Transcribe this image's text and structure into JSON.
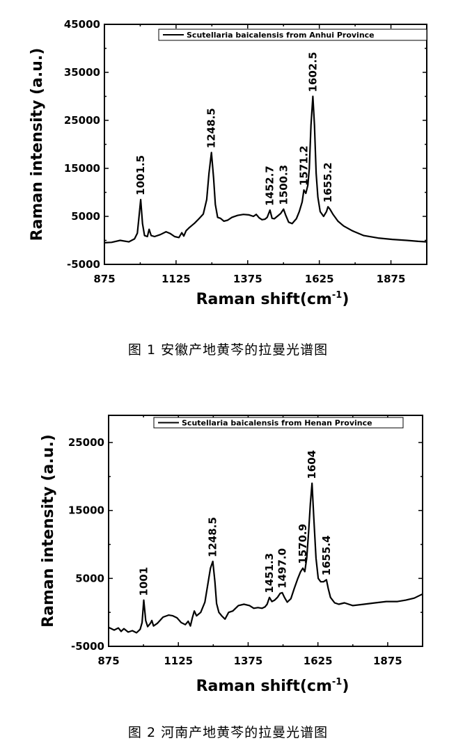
{
  "chart_data": [
    {
      "type": "line",
      "caption": "图 1  安徽产地黄芩的拉曼光谱图",
      "xlabel": "Raman shift(cm",
      "xlabel_sup": "-1",
      "xlabel_close": ")",
      "ylabel": "Raman intensity (a.u.)",
      "xlim": [
        875,
        2000
      ],
      "ylim": [
        -5000,
        45000
      ],
      "xticks": [
        875,
        1125,
        1375,
        1625,
        1875
      ],
      "yticks": [
        -5000,
        5000,
        15000,
        25000,
        35000,
        45000
      ],
      "legend": "top-right",
      "series": [
        {
          "name": "Scutellaria baicalensis from Anhui Province",
          "x": [
            875,
            900,
            930,
            960,
            980,
            990,
            995,
            1001.5,
            1008,
            1015,
            1025,
            1031,
            1038,
            1050,
            1070,
            1090,
            1105,
            1120,
            1135,
            1145,
            1152,
            1160,
            1170,
            1178,
            1190,
            1205,
            1220,
            1232,
            1240,
            1248.5,
            1256,
            1262,
            1270,
            1280,
            1292,
            1305,
            1320,
            1340,
            1360,
            1380,
            1395,
            1405,
            1415,
            1425,
            1435,
            1443,
            1452.7,
            1460,
            1468,
            1478,
            1490,
            1500.3,
            1508,
            1518,
            1530,
            1545,
            1555,
            1565,
            1571.2,
            1578,
            1585,
            1590,
            1596,
            1602.5,
            1608,
            1614,
            1620,
            1628,
            1640,
            1650,
            1655.2,
            1662,
            1672,
            1690,
            1710,
            1740,
            1780,
            1830,
            1880,
            1930,
            1970,
            2000
          ],
          "y": [
            -500,
            -400,
            0,
            -300,
            300,
            1500,
            4500,
            8500,
            3500,
            1000,
            800,
            2300,
            1000,
            800,
            1200,
            1800,
            1400,
            800,
            600,
            1600,
            900,
            2000,
            2600,
            3000,
            3600,
            4500,
            5500,
            8500,
            14000,
            18300,
            13000,
            7500,
            4800,
            4600,
            4000,
            4200,
            4800,
            5200,
            5400,
            5300,
            5000,
            5400,
            4700,
            4300,
            4400,
            4800,
            6300,
            4600,
            4500,
            5000,
            5600,
            6500,
            5200,
            3800,
            3500,
            4500,
            6000,
            8000,
            10500,
            9800,
            11500,
            15000,
            24000,
            30000,
            24000,
            14000,
            9000,
            6000,
            5000,
            6000,
            7000,
            6500,
            5500,
            4000,
            3000,
            2000,
            1000,
            500,
            200,
            0,
            -200,
            -300
          ]
        }
      ],
      "annotations": [
        {
          "text": "1001.5",
          "x": 1001.5,
          "y": 8500
        },
        {
          "text": "1248.5",
          "x": 1248.5,
          "y": 18300
        },
        {
          "text": "1452.7",
          "x": 1452.7,
          "y": 6300
        },
        {
          "text": "1500.3",
          "x": 1500.3,
          "y": 6500
        },
        {
          "text": "1571.2",
          "x": 1571.2,
          "y": 10500
        },
        {
          "text": "1602.5",
          "x": 1602.5,
          "y": 30000
        },
        {
          "text": "1655.2",
          "x": 1655.2,
          "y": 7000
        }
      ]
    },
    {
      "type": "line",
      "caption": "图 2  河南产地黄芩的拉曼光谱图",
      "xlabel": "Raman shift(cm",
      "xlabel_sup": "-1",
      "xlabel_close": ")",
      "ylabel": "Raman intensity (a.u.)",
      "xlim": [
        875,
        2000
      ],
      "ylim": [
        -5000,
        29000
      ],
      "xticks": [
        875,
        1125,
        1375,
        1625,
        1875
      ],
      "yticks": [
        -5000,
        5000,
        15000,
        25000
      ],
      "legend": "top-right",
      "series": [
        {
          "name": "Scutellaria baicalensis from Henan Province",
          "x": [
            875,
            895,
            910,
            920,
            930,
            945,
            960,
            975,
            988,
            995,
            1001,
            1008,
            1015,
            1025,
            1030,
            1036,
            1050,
            1070,
            1090,
            1105,
            1120,
            1135,
            1150,
            1160,
            1168,
            1175,
            1182,
            1190,
            1205,
            1220,
            1232,
            1240,
            1248.5,
            1256,
            1262,
            1270,
            1280,
            1292,
            1305,
            1320,
            1340,
            1360,
            1380,
            1395,
            1410,
            1425,
            1435,
            1443,
            1451.3,
            1460,
            1470,
            1480,
            1490,
            1497,
            1505,
            1515,
            1528,
            1540,
            1553,
            1563,
            1570.9,
            1578,
            1585,
            1592,
            1598,
            1604,
            1610,
            1618,
            1626,
            1635,
            1645,
            1655.4,
            1662,
            1670,
            1685,
            1700,
            1720,
            1750,
            1790,
            1830,
            1870,
            1910,
            1940,
            1970,
            2000
          ],
          "y": [
            -2200,
            -2600,
            -2300,
            -2800,
            -2400,
            -2900,
            -2700,
            -3000,
            -2500,
            -1500,
            1800,
            -1200,
            -2100,
            -1600,
            -1200,
            -2000,
            -1600,
            -700,
            -400,
            -500,
            -800,
            -1500,
            -1800,
            -1300,
            -2000,
            -800,
            200,
            -500,
            0,
            1500,
            4500,
            6500,
            7500,
            4500,
            1300,
            0,
            -500,
            -1000,
            0,
            200,
            1000,
            1200,
            1000,
            600,
            700,
            600,
            800,
            1200,
            2200,
            1600,
            1800,
            2200,
            2800,
            2900,
            2200,
            1500,
            2000,
            3500,
            5000,
            6000,
            6500,
            6000,
            8000,
            12000,
            16000,
            19000,
            14000,
            8000,
            5000,
            4500,
            4500,
            4800,
            3500,
            2200,
            1400,
            1200,
            1400,
            1000,
            1200,
            1400,
            1600,
            1600,
            1800,
            2100,
            2700
          ]
        }
      ],
      "annotations": [
        {
          "text": "1001",
          "x": 1001,
          "y": 1800
        },
        {
          "text": "1248.5",
          "x": 1248.5,
          "y": 7500
        },
        {
          "text": "1451.3",
          "x": 1451.3,
          "y": 2200
        },
        {
          "text": "1497.0",
          "x": 1497,
          "y": 2900
        },
        {
          "text": "1570.9",
          "x": 1570.9,
          "y": 6500
        },
        {
          "text": "1604",
          "x": 1604,
          "y": 19000
        },
        {
          "text": "1655.4",
          "x": 1655.4,
          "y": 4800
        }
      ]
    }
  ]
}
